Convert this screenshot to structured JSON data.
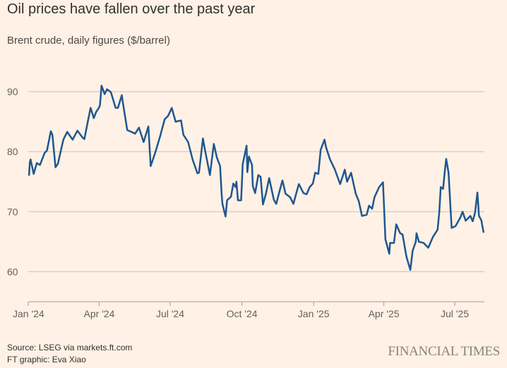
{
  "title": "Oil prices have fallen over the past year",
  "subtitle": "Brent crude, daily figures ($/barrel)",
  "footer": {
    "source": "Source: LSEG via markets.ft.com",
    "credit": "FT graphic: Eva Xiao",
    "logo": "FINANCIAL TIMES"
  },
  "colors": {
    "background": "#FFF1E5",
    "line": "#1f5690",
    "grid": "#cbbfb5",
    "text": "#66605c"
  },
  "chart_data": {
    "type": "line",
    "title": "Oil prices have fallen over the past year",
    "subtitle": "Brent crude, daily figures ($/barrel)",
    "xlabel": "",
    "ylabel": "",
    "xlim": [
      "2024-01-01",
      "2025-08-08"
    ],
    "ylim": [
      55,
      92
    ],
    "grid": "horizontal",
    "yticks": [
      60,
      70,
      80,
      90
    ],
    "xticks": [
      {
        "date": "2024-01-01",
        "label": "Jan '24"
      },
      {
        "date": "2024-04-01",
        "label": "Apr '24"
      },
      {
        "date": "2024-07-01",
        "label": "Jul '24"
      },
      {
        "date": "2024-10-01",
        "label": "Oct '24"
      },
      {
        "date": "2025-01-01",
        "label": "Jan '25"
      },
      {
        "date": "2025-04-01",
        "label": "Apr '25"
      },
      {
        "date": "2025-07-01",
        "label": "Jul '25"
      }
    ],
    "series": [
      {
        "points": [
          [
            "2024-01-02",
            76.0
          ],
          [
            "2024-01-03",
            78.2
          ],
          [
            "2024-01-04",
            78.7
          ],
          [
            "2024-01-08",
            76.3
          ],
          [
            "2024-01-12",
            78.1
          ],
          [
            "2024-01-16",
            77.8
          ],
          [
            "2024-01-22",
            79.8
          ],
          [
            "2024-01-25",
            80.2
          ],
          [
            "2024-01-30",
            83.4
          ],
          [
            "2024-02-01",
            82.8
          ],
          [
            "2024-02-05",
            77.4
          ],
          [
            "2024-02-08",
            78.0
          ],
          [
            "2024-02-15",
            82.0
          ],
          [
            "2024-02-20",
            83.3
          ],
          [
            "2024-02-27",
            82.0
          ],
          [
            "2024-03-04",
            83.5
          ],
          [
            "2024-03-11",
            82.3
          ],
          [
            "2024-03-13",
            82.1
          ],
          [
            "2024-03-18",
            85.4
          ],
          [
            "2024-03-21",
            87.3
          ],
          [
            "2024-03-25",
            85.6
          ],
          [
            "2024-03-28",
            86.6
          ],
          [
            "2024-04-01",
            87.4
          ],
          [
            "2024-04-02",
            87.8
          ],
          [
            "2024-04-04",
            91.0
          ],
          [
            "2024-04-08",
            89.6
          ],
          [
            "2024-04-11",
            90.4
          ],
          [
            "2024-04-16",
            89.9
          ],
          [
            "2024-04-22",
            87.3
          ],
          [
            "2024-04-25",
            87.3
          ],
          [
            "2024-04-30",
            89.4
          ],
          [
            "2024-05-01",
            88.5
          ],
          [
            "2024-05-07",
            83.6
          ],
          [
            "2024-05-14",
            83.2
          ],
          [
            "2024-05-17",
            83.0
          ],
          [
            "2024-05-22",
            84.0
          ],
          [
            "2024-05-28",
            81.6
          ],
          [
            "2024-06-03",
            84.2
          ],
          [
            "2024-06-06",
            77.6
          ],
          [
            "2024-06-12",
            79.9
          ],
          [
            "2024-06-18",
            82.5
          ],
          [
            "2024-06-24",
            85.4
          ],
          [
            "2024-06-28",
            85.9
          ],
          [
            "2024-07-01",
            86.7
          ],
          [
            "2024-07-03",
            87.3
          ],
          [
            "2024-07-08",
            85.0
          ],
          [
            "2024-07-15",
            85.2
          ],
          [
            "2024-07-18",
            82.8
          ],
          [
            "2024-07-24",
            81.6
          ],
          [
            "2024-07-30",
            78.6
          ],
          [
            "2024-08-05",
            76.4
          ],
          [
            "2024-08-07",
            76.5
          ],
          [
            "2024-08-12",
            82.2
          ],
          [
            "2024-08-14",
            80.7
          ],
          [
            "2024-08-21",
            76.1
          ],
          [
            "2024-08-26",
            81.3
          ],
          [
            "2024-08-30",
            79.0
          ],
          [
            "2024-09-03",
            77.6
          ],
          [
            "2024-09-05",
            72.9
          ],
          [
            "2024-09-06",
            71.3
          ],
          [
            "2024-09-10",
            69.2
          ],
          [
            "2024-09-12",
            71.9
          ],
          [
            "2024-09-17",
            72.5
          ],
          [
            "2024-09-20",
            74.7
          ],
          [
            "2024-09-23",
            74.1
          ],
          [
            "2024-09-24",
            75.0
          ],
          [
            "2024-09-26",
            71.9
          ],
          [
            "2024-09-30",
            71.9
          ],
          [
            "2024-10-02",
            77.9
          ],
          [
            "2024-10-07",
            81.0
          ],
          [
            "2024-10-08",
            76.6
          ],
          [
            "2024-10-10",
            79.2
          ],
          [
            "2024-10-14",
            77.8
          ],
          [
            "2024-10-15",
            74.3
          ],
          [
            "2024-10-18",
            73.1
          ],
          [
            "2024-10-22",
            76.1
          ],
          [
            "2024-10-25",
            75.8
          ],
          [
            "2024-10-28",
            71.2
          ],
          [
            "2024-11-01",
            73.1
          ],
          [
            "2024-11-05",
            75.6
          ],
          [
            "2024-11-11",
            72.0
          ],
          [
            "2024-11-14",
            71.3
          ],
          [
            "2024-11-18",
            73.3
          ],
          [
            "2024-11-22",
            75.2
          ],
          [
            "2024-11-26",
            73.0
          ],
          [
            "2024-12-02",
            72.4
          ],
          [
            "2024-12-06",
            71.3
          ],
          [
            "2024-12-13",
            74.6
          ],
          [
            "2024-12-19",
            73.1
          ],
          [
            "2024-12-23",
            72.9
          ],
          [
            "2024-12-27",
            74.1
          ],
          [
            "2024-12-31",
            74.7
          ],
          [
            "2025-01-03",
            76.5
          ],
          [
            "2025-01-07",
            76.3
          ],
          [
            "2025-01-10",
            80.3
          ],
          [
            "2025-01-15",
            82.0
          ],
          [
            "2025-01-17",
            80.7
          ],
          [
            "2025-01-22",
            78.7
          ],
          [
            "2025-01-28",
            77.1
          ],
          [
            "2025-02-04",
            74.6
          ],
          [
            "2025-02-10",
            77.0
          ],
          [
            "2025-02-13",
            75.0
          ],
          [
            "2025-02-18",
            76.5
          ],
          [
            "2025-02-24",
            73.0
          ],
          [
            "2025-02-28",
            71.7
          ],
          [
            "2025-03-04",
            69.3
          ],
          [
            "2025-03-10",
            69.5
          ],
          [
            "2025-03-13",
            71.0
          ],
          [
            "2025-03-17",
            70.5
          ],
          [
            "2025-03-20",
            72.4
          ],
          [
            "2025-03-26",
            74.1
          ],
          [
            "2025-03-31",
            74.9
          ],
          [
            "2025-04-03",
            65.4
          ],
          [
            "2025-04-08",
            63.0
          ],
          [
            "2025-04-09",
            64.8
          ],
          [
            "2025-04-14",
            64.8
          ],
          [
            "2025-04-17",
            67.9
          ],
          [
            "2025-04-22",
            66.4
          ],
          [
            "2025-04-25",
            66.2
          ],
          [
            "2025-04-30",
            62.5
          ],
          [
            "2025-05-05",
            60.3
          ],
          [
            "2025-05-08",
            63.5
          ],
          [
            "2025-05-12",
            65.0
          ],
          [
            "2025-05-13",
            66.4
          ],
          [
            "2025-05-16",
            65.0
          ],
          [
            "2025-05-22",
            64.8
          ],
          [
            "2025-05-28",
            64.0
          ],
          [
            "2025-06-03",
            65.8
          ],
          [
            "2025-06-09",
            67.0
          ],
          [
            "2025-06-11",
            69.8
          ],
          [
            "2025-06-13",
            74.1
          ],
          [
            "2025-06-16",
            73.8
          ],
          [
            "2025-06-18",
            76.5
          ],
          [
            "2025-06-20",
            78.8
          ],
          [
            "2025-06-23",
            76.5
          ],
          [
            "2025-06-27",
            67.3
          ],
          [
            "2025-07-02",
            67.6
          ],
          [
            "2025-07-08",
            69.0
          ],
          [
            "2025-07-11",
            70.0
          ],
          [
            "2025-07-15",
            68.5
          ],
          [
            "2025-07-21",
            69.3
          ],
          [
            "2025-07-24",
            68.4
          ],
          [
            "2025-07-27",
            69.8
          ],
          [
            "2025-07-30",
            73.2
          ],
          [
            "2025-08-01",
            69.3
          ],
          [
            "2025-08-04",
            68.6
          ],
          [
            "2025-08-07",
            66.5
          ]
        ]
      }
    ]
  }
}
